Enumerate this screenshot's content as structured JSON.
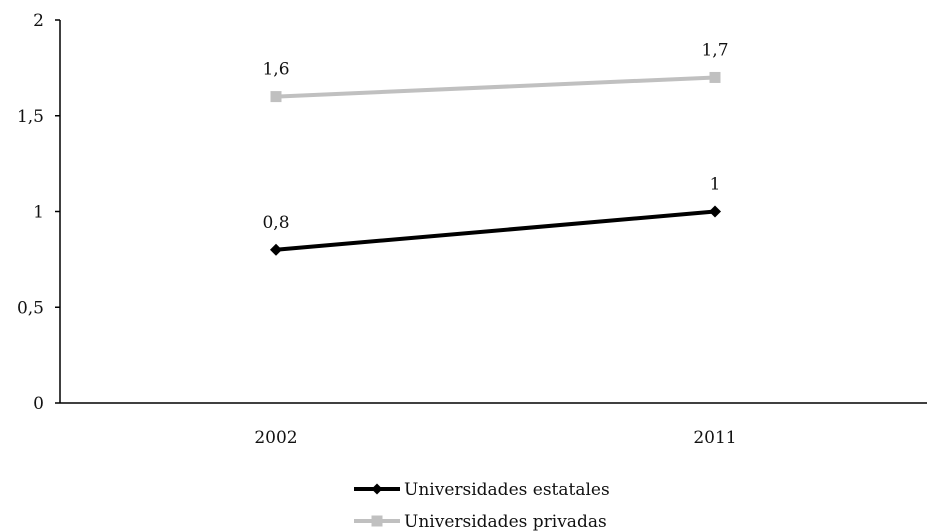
{
  "chart_data": {
    "type": "line",
    "categories": [
      "2002",
      "2011"
    ],
    "series": [
      {
        "name": "Universidades estatales",
        "values": [
          0.8,
          1
        ],
        "labels": [
          "0,8",
          "1"
        ],
        "color": "#000000",
        "marker": "diamond"
      },
      {
        "name": "Universidades privadas",
        "values": [
          1.6,
          1.7
        ],
        "labels": [
          "1,6",
          "1,7"
        ],
        "color": "#c0c0c0",
        "marker": "square"
      }
    ],
    "y_ticks": [
      {
        "value": 0,
        "label": "0"
      },
      {
        "value": 0.5,
        "label": "0,5"
      },
      {
        "value": 1,
        "label": "1"
      },
      {
        "value": 1.5,
        "label": "1,5"
      },
      {
        "value": 2,
        "label": "2"
      }
    ],
    "ylim": [
      0,
      2
    ],
    "grid": false,
    "legend_position": "bottom"
  }
}
